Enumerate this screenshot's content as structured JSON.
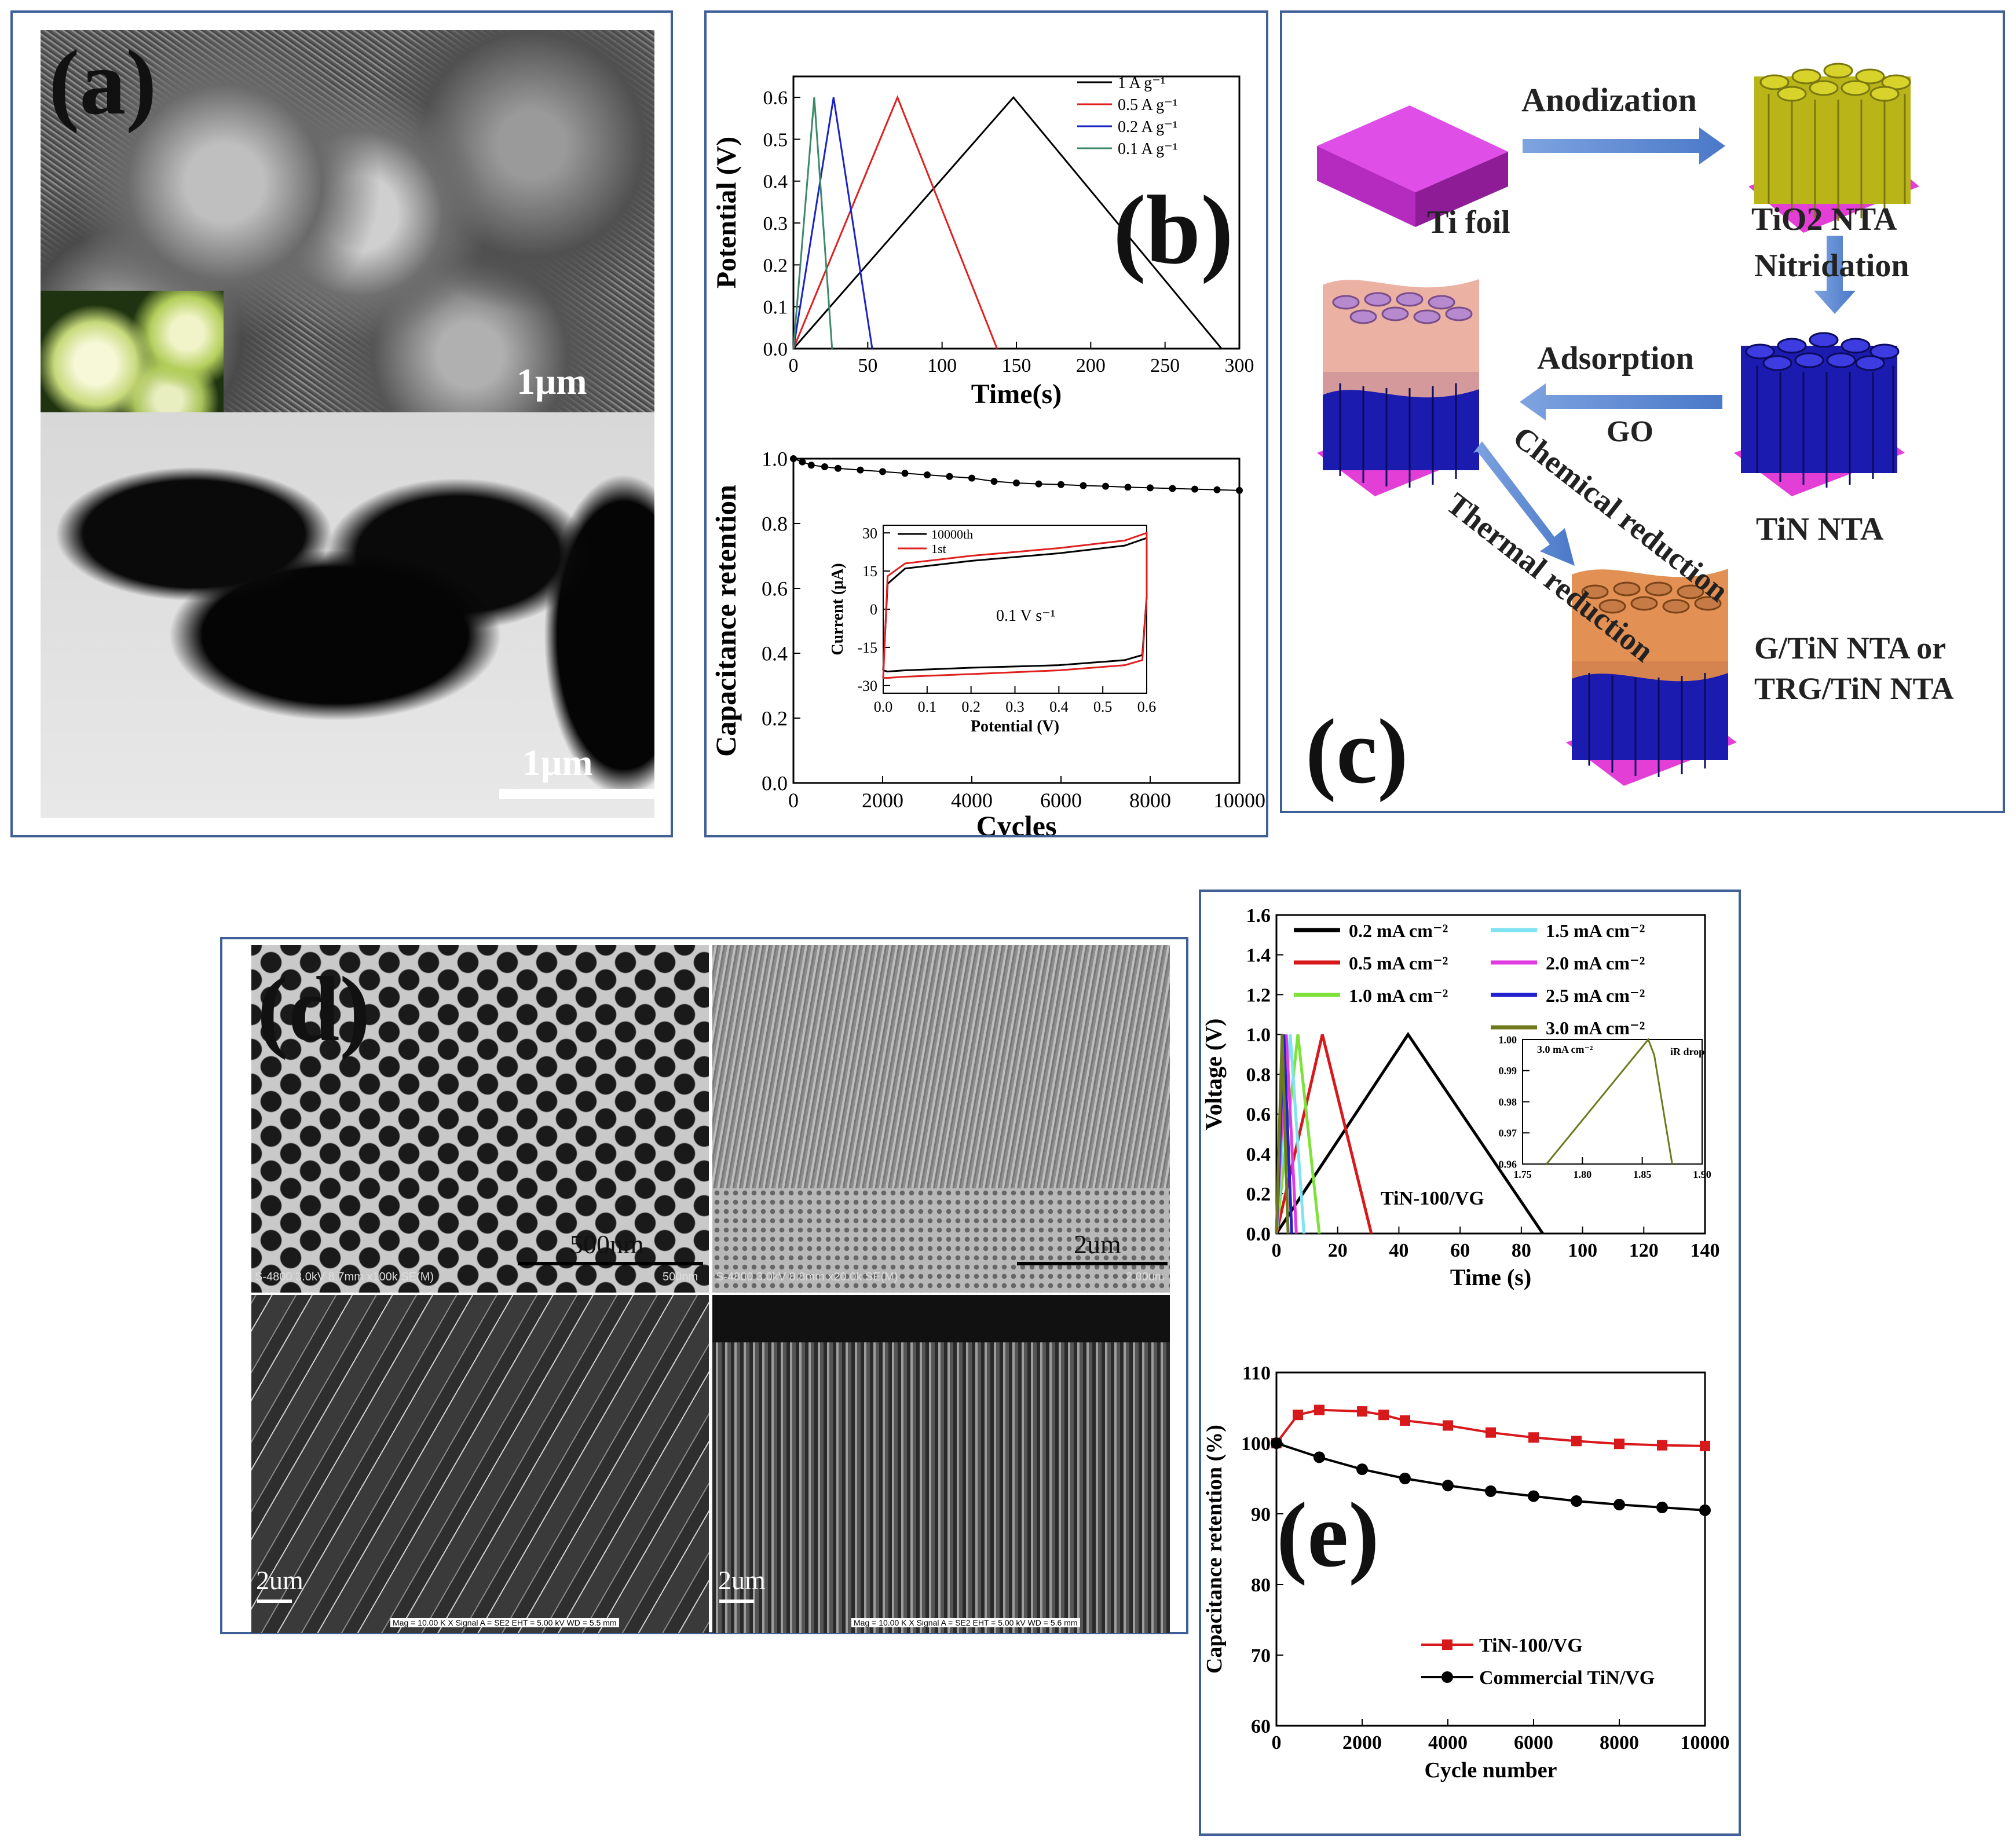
{
  "panel_a": {
    "label": "(a)",
    "scale_top": "1μm",
    "scale_bottom": "1μm"
  },
  "panel_b": {
    "label": "(b)"
  },
  "panel_c": {
    "label": "(c)",
    "ti_foil": "Ti foil",
    "anodization": "Anodization",
    "tio2_nta": "TiO2 NTA",
    "nitridation": "Nitridation",
    "adsorption": "Adsorption",
    "go": "GO",
    "tin_nta": "TiN NTA",
    "chemical_reduction": "Chemical reduction",
    "thermal_reduction": "Thermal reduction",
    "product_line1": "G/TiN NTA or",
    "product_line2": "TRG/TiN NTA"
  },
  "panel_d": {
    "label": "(d)",
    "tl_scale": "500nm",
    "tl_footer": "S-4800 3.0kV 8.7mm x100k SE(M)",
    "tl_footer_right": "500nm",
    "tr_scale": "2um",
    "tr_footer": "S-4800 3.0kV 8.8mm x20.0k SE(M)",
    "tr_footer_right": "2.00um",
    "bl_scale": "2um",
    "bl_footer": "Mag = 10.00 K X   Signal A = SE2   EHT = 5.00 kV   WD = 5.5 mm",
    "br_scale": "2um",
    "br_footer": "Mag = 10.00 K X   Signal A = SE2   EHT = 5.00 kV   WD = 5.6 mm"
  },
  "panel_e": {
    "label": "(e)"
  },
  "chart_data": [
    {
      "id": "b_gcd",
      "type": "line",
      "xlabel": "Time(s)",
      "ylabel": "Potential (V)",
      "xlim": [
        0,
        300
      ],
      "ylim": [
        0,
        0.65
      ],
      "xticks": [
        0,
        50,
        100,
        150,
        200,
        250,
        300
      ],
      "yticks": [
        0.0,
        0.1,
        0.2,
        0.3,
        0.4,
        0.5,
        0.6
      ],
      "legend": "top-right",
      "series": [
        {
          "name": "1 A g⁻¹",
          "color": "#000000",
          "x": [
            0,
            148,
            288
          ],
          "y": [
            0,
            0.6,
            0
          ]
        },
        {
          "name": "0.5 A g⁻¹",
          "color": "#e0201f",
          "x": [
            0,
            70,
            137
          ],
          "y": [
            0,
            0.6,
            0
          ]
        },
        {
          "name": "0.2 A g⁻¹",
          "color": "#1a23c4",
          "x": [
            0,
            27,
            53
          ],
          "y": [
            0,
            0.6,
            0
          ]
        },
        {
          "name": "0.1 A g⁻¹",
          "color": "#3c8a6a",
          "x": [
            0,
            14,
            26
          ],
          "y": [
            0,
            0.6,
            0
          ]
        }
      ]
    },
    {
      "id": "b_cycling",
      "type": "scatter",
      "xlabel": "Cycles",
      "ylabel": "Capacitance retention",
      "xlim": [
        0,
        10000
      ],
      "ylim": [
        0,
        1.0
      ],
      "xticks": [
        0,
        2000,
        4000,
        6000,
        8000,
        10000
      ],
      "yticks": [
        0.0,
        0.2,
        0.4,
        0.6,
        0.8,
        1.0
      ],
      "series": [
        {
          "name": "",
          "color": "#000000",
          "x": [
            0,
            200,
            400,
            700,
            1000,
            1500,
            2000,
            2500,
            3000,
            3500,
            4000,
            4500,
            5000,
            5500,
            6000,
            6500,
            7000,
            7500,
            8000,
            8500,
            9000,
            9500,
            10000
          ],
          "y": [
            1.0,
            0.99,
            0.98,
            0.975,
            0.97,
            0.965,
            0.96,
            0.955,
            0.95,
            0.945,
            0.94,
            0.93,
            0.925,
            0.922,
            0.92,
            0.917,
            0.915,
            0.912,
            0.91,
            0.908,
            0.906,
            0.904,
            0.902
          ]
        }
      ],
      "inset": {
        "type": "line",
        "xlabel": "Potential (V)",
        "ylabel": "Current (μA)",
        "xlim": [
          0,
          0.6
        ],
        "ylim": [
          -33,
          33
        ],
        "xticks": [
          0.0,
          0.1,
          0.2,
          0.3,
          0.4,
          0.5,
          0.6
        ],
        "yticks": [
          -30,
          -15,
          0,
          15,
          30
        ],
        "annotation": "0.1 V s⁻¹",
        "series": [
          {
            "name": "10000th",
            "color": "#000000",
            "x": [
              0.0,
              0.01,
              0.05,
              0.2,
              0.4,
              0.55,
              0.6,
              0.6,
              0.59,
              0.55,
              0.4,
              0.2,
              0.05,
              0.01,
              0.0
            ],
            "y": [
              -24,
              10,
              16,
              19,
              22,
              25,
              28,
              5,
              -18,
              -20,
              -22,
              -23,
              -24,
              -24.5,
              -24
            ]
          },
          {
            "name": "1st",
            "color": "#e0201f",
            "x": [
              0.0,
              0.01,
              0.05,
              0.2,
              0.4,
              0.55,
              0.6,
              0.6,
              0.59,
              0.55,
              0.4,
              0.2,
              0.05,
              0.01,
              0.0
            ],
            "y": [
              -27,
              13,
              18,
              21,
              24,
              27,
              30,
              5,
              -20,
              -22,
              -24,
              -25.5,
              -26.5,
              -27,
              -27
            ]
          }
        ]
      }
    },
    {
      "id": "e_gcd",
      "type": "line",
      "xlabel": "Time (s)",
      "ylabel": "Voltage (V)",
      "xlim": [
        0,
        140
      ],
      "ylim": [
        0,
        1.6
      ],
      "xticks": [
        0,
        20,
        40,
        60,
        80,
        100,
        120,
        140
      ],
      "yticks": [
        0.0,
        0.2,
        0.4,
        0.6,
        0.8,
        1.0,
        1.2,
        1.4,
        1.6
      ],
      "annotation": "TiN-100/VG",
      "series": [
        {
          "name": "0.2 mA cm⁻²",
          "color": "#000000",
          "x": [
            0,
            43,
            87
          ],
          "y": [
            0,
            1.0,
            0
          ]
        },
        {
          "name": "0.5 mA cm⁻²",
          "color": "#d7191c",
          "x": [
            0,
            15,
            31
          ],
          "y": [
            0,
            1.0,
            0
          ]
        },
        {
          "name": "1.0 mA cm⁻²",
          "color": "#7ee23a",
          "x": [
            0,
            7,
            14
          ],
          "y": [
            0,
            1.0,
            0
          ]
        },
        {
          "name": "1.5 mA cm⁻²",
          "color": "#7fe3f2",
          "x": [
            0,
            4.5,
            9
          ],
          "y": [
            0,
            1.0,
            0
          ]
        },
        {
          "name": "2.0 mA cm⁻²",
          "color": "#e03ae0",
          "x": [
            0,
            3.2,
            6.5
          ],
          "y": [
            0,
            1.0,
            0
          ]
        },
        {
          "name": "2.5 mA cm⁻²",
          "color": "#2222cc",
          "x": [
            0,
            2.4,
            5
          ],
          "y": [
            0,
            1.0,
            0
          ]
        },
        {
          "name": "3.0 mA cm⁻²",
          "color": "#6f7a1e",
          "x": [
            0,
            1.85,
            3.8
          ],
          "y": [
            0,
            1.0,
            0
          ]
        }
      ],
      "inset": {
        "type": "line",
        "xlim": [
          1.75,
          1.9
        ],
        "ylim": [
          0.96,
          1.0
        ],
        "xticks": [
          1.75,
          1.8,
          1.85,
          1.9
        ],
        "yticks": [
          0.96,
          0.97,
          0.98,
          0.99,
          1.0
        ],
        "legend": "3.0 mA cm⁻²",
        "annotation": "iR drop",
        "series": [
          {
            "name": "3.0 mA cm⁻²",
            "color": "#6f7a1e",
            "x": [
              1.77,
              1.855,
              1.86,
              1.875
            ],
            "y": [
              0.96,
              1.0,
              0.995,
              0.96
            ]
          }
        ]
      }
    },
    {
      "id": "e_cycling",
      "type": "line",
      "xlabel": "Cycle number",
      "ylabel": "Capacitance retention (%)",
      "xlim": [
        0,
        10000
      ],
      "ylim": [
        60,
        110
      ],
      "xticks": [
        0,
        2000,
        4000,
        6000,
        8000,
        10000
      ],
      "yticks": [
        60,
        70,
        80,
        90,
        100,
        110
      ],
      "legend": "bottom-right",
      "series": [
        {
          "name": "TiN-100/VG",
          "color": "#d7191c",
          "x": [
            0,
            500,
            1000,
            2000,
            2500,
            3000,
            4000,
            5000,
            6000,
            7000,
            8000,
            9000,
            10000
          ],
          "y": [
            100,
            104,
            104.7,
            104.5,
            104,
            103.2,
            102.5,
            101.5,
            100.8,
            100.3,
            99.9,
            99.7,
            99.6
          ]
        },
        {
          "name": "Commercial TiN/VG",
          "color": "#000000",
          "x": [
            0,
            1000,
            2000,
            3000,
            4000,
            5000,
            6000,
            7000,
            8000,
            9000,
            10000
          ],
          "y": [
            100,
            98,
            96.3,
            95,
            94,
            93.2,
            92.5,
            91.8,
            91.3,
            90.9,
            90.5
          ]
        }
      ]
    }
  ]
}
